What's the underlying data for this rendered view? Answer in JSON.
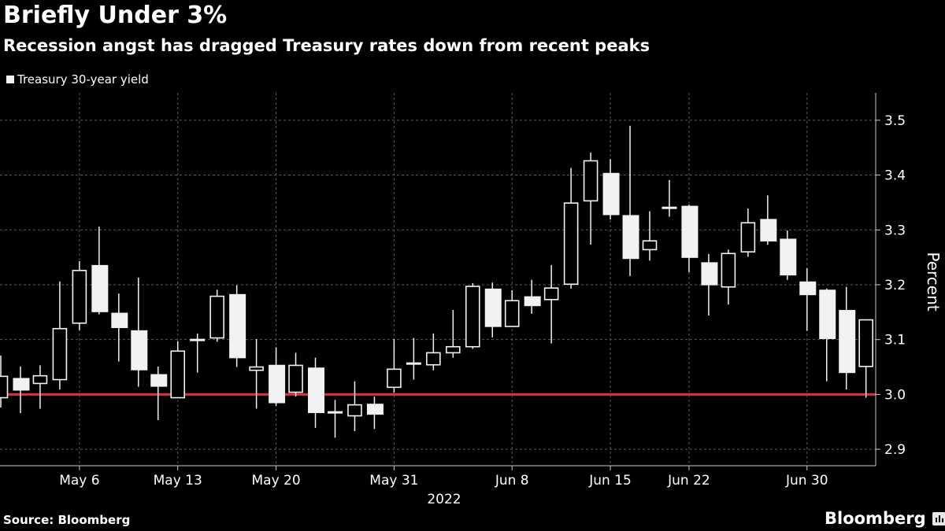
{
  "title": "Briefly Under 3%",
  "subtitle": "Recession angst has dragged Treasury rates down from recent peaks",
  "source": "Source: Bloomberg",
  "brand": "Bloomberg",
  "colors": {
    "background": "#000000",
    "candle": "#f2f2f2",
    "reference_line": "#e0303f",
    "grid": "#5a5a5a"
  },
  "chart_data": {
    "type": "candlestick",
    "legend": [
      "Treasury 30-year yield"
    ],
    "legend_position": "top-left",
    "ylabel": "Percent",
    "xlabel": "2022",
    "ylim": [
      2.87,
      3.55
    ],
    "yticks": [
      "2.9",
      "3.0",
      "3.1",
      "3.2",
      "3.3",
      "3.4",
      "3.5"
    ],
    "grid": true,
    "reference_line": 3.0,
    "xticks": [
      {
        "date": "May 6",
        "label": "May 6"
      },
      {
        "date": "May 13",
        "label": "May 13"
      },
      {
        "date": "May 20",
        "label": "May 20"
      },
      {
        "date": "May 31",
        "label": "May 31"
      },
      {
        "date": "Jun 8",
        "label": "Jun 8"
      },
      {
        "date": "Jun 15",
        "label": "Jun 15"
      },
      {
        "date": "Jun 22",
        "label": "Jun 22"
      },
      {
        "date": "Jun 30",
        "label": "Jun 30"
      }
    ],
    "candles": [
      {
        "date": "May 2",
        "open": 2.994,
        "high": 3.071,
        "low": 2.976,
        "close": 3.033
      },
      {
        "date": "May 3",
        "open": 3.03,
        "high": 3.051,
        "low": 2.966,
        "close": 3.007
      },
      {
        "date": "May 4",
        "open": 3.02,
        "high": 3.053,
        "low": 2.974,
        "close": 3.034
      },
      {
        "date": "May 5",
        "open": 3.027,
        "high": 3.206,
        "low": 3.009,
        "close": 3.12
      },
      {
        "date": "May 6",
        "open": 3.13,
        "high": 3.243,
        "low": 3.117,
        "close": 3.226
      },
      {
        "date": "May 9",
        "open": 3.236,
        "high": 3.306,
        "low": 3.146,
        "close": 3.15
      },
      {
        "date": "May 10",
        "open": 3.149,
        "high": 3.184,
        "low": 3.06,
        "close": 3.121
      },
      {
        "date": "May 11",
        "open": 3.117,
        "high": 3.213,
        "low": 3.014,
        "close": 3.044
      },
      {
        "date": "May 12",
        "open": 3.037,
        "high": 3.051,
        "low": 2.953,
        "close": 3.014
      },
      {
        "date": "May 13",
        "open": 2.994,
        "high": 3.097,
        "low": 2.994,
        "close": 3.079
      },
      {
        "date": "May 16",
        "open": 3.099,
        "high": 3.111,
        "low": 3.04,
        "close": 3.1
      },
      {
        "date": "May 17",
        "open": 3.103,
        "high": 3.191,
        "low": 3.096,
        "close": 3.179
      },
      {
        "date": "May 18",
        "open": 3.183,
        "high": 3.199,
        "low": 3.05,
        "close": 3.066
      },
      {
        "date": "May 19",
        "open": 3.044,
        "high": 3.101,
        "low": 2.974,
        "close": 3.05
      },
      {
        "date": "May 20",
        "open": 3.054,
        "high": 3.086,
        "low": 2.979,
        "close": 2.984
      },
      {
        "date": "May 23",
        "open": 3.004,
        "high": 3.076,
        "low": 2.996,
        "close": 3.053
      },
      {
        "date": "May 24",
        "open": 3.049,
        "high": 3.067,
        "low": 2.939,
        "close": 2.966
      },
      {
        "date": "May 25",
        "open": 2.967,
        "high": 2.99,
        "low": 2.921,
        "close": 2.968
      },
      {
        "date": "May 26",
        "open": 2.961,
        "high": 3.024,
        "low": 2.933,
        "close": 2.981
      },
      {
        "date": "May 27",
        "open": 2.983,
        "high": 2.996,
        "low": 2.937,
        "close": 2.963
      },
      {
        "date": "May 31",
        "open": 3.013,
        "high": 3.101,
        "low": 3.003,
        "close": 3.046
      },
      {
        "date": "Jun 1",
        "open": 3.056,
        "high": 3.103,
        "low": 3.027,
        "close": 3.057
      },
      {
        "date": "Jun 2",
        "open": 3.054,
        "high": 3.111,
        "low": 3.044,
        "close": 3.076
      },
      {
        "date": "Jun 3",
        "open": 3.076,
        "high": 3.154,
        "low": 3.067,
        "close": 3.087
      },
      {
        "date": "Jun 6",
        "open": 3.087,
        "high": 3.203,
        "low": 3.083,
        "close": 3.197
      },
      {
        "date": "Jun 7",
        "open": 3.193,
        "high": 3.204,
        "low": 3.104,
        "close": 3.123
      },
      {
        "date": "Jun 8",
        "open": 3.124,
        "high": 3.19,
        "low": 3.124,
        "close": 3.171
      },
      {
        "date": "Jun 9",
        "open": 3.179,
        "high": 3.209,
        "low": 3.147,
        "close": 3.161
      },
      {
        "date": "Jun 10",
        "open": 3.173,
        "high": 3.236,
        "low": 3.093,
        "close": 3.194
      },
      {
        "date": "Jun 13",
        "open": 3.201,
        "high": 3.413,
        "low": 3.193,
        "close": 3.349
      },
      {
        "date": "Jun 14",
        "open": 3.353,
        "high": 3.441,
        "low": 3.273,
        "close": 3.426
      },
      {
        "date": "Jun 15",
        "open": 3.404,
        "high": 3.429,
        "low": 3.319,
        "close": 3.327
      },
      {
        "date": "Jun 16",
        "open": 3.327,
        "high": 3.49,
        "low": 3.216,
        "close": 3.247
      },
      {
        "date": "Jun 17",
        "open": 3.264,
        "high": 3.334,
        "low": 3.244,
        "close": 3.28
      },
      {
        "date": "Jun 21",
        "open": 3.34,
        "high": 3.391,
        "low": 3.324,
        "close": 3.341
      },
      {
        "date": "Jun 22",
        "open": 3.344,
        "high": 3.346,
        "low": 3.223,
        "close": 3.249
      },
      {
        "date": "Jun 23",
        "open": 3.241,
        "high": 3.256,
        "low": 3.144,
        "close": 3.199
      },
      {
        "date": "Jun 24",
        "open": 3.196,
        "high": 3.264,
        "low": 3.164,
        "close": 3.257
      },
      {
        "date": "Jun 27",
        "open": 3.26,
        "high": 3.339,
        "low": 3.251,
        "close": 3.313
      },
      {
        "date": "Jun 28",
        "open": 3.32,
        "high": 3.363,
        "low": 3.273,
        "close": 3.279
      },
      {
        "date": "Jun 29",
        "open": 3.284,
        "high": 3.299,
        "low": 3.209,
        "close": 3.217
      },
      {
        "date": "Jun 30",
        "open": 3.206,
        "high": 3.23,
        "low": 3.116,
        "close": 3.181
      },
      {
        "date": "Jul 1",
        "open": 3.191,
        "high": 3.193,
        "low": 3.024,
        "close": 3.101
      },
      {
        "date": "Jul 5",
        "open": 3.154,
        "high": 3.196,
        "low": 3.009,
        "close": 3.039
      },
      {
        "date": "Jul 6",
        "open": 3.051,
        "high": 3.136,
        "low": 2.994,
        "close": 3.136
      }
    ]
  }
}
